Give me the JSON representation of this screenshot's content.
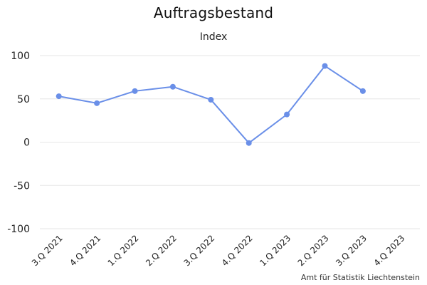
{
  "chart_data": {
    "type": "line",
    "title": "Auftragsbestand",
    "subtitle": "Index",
    "categories": [
      "3.Q 2021",
      "4.Q 2021",
      "1.Q 2022",
      "2.Q 2022",
      "3.Q 2022",
      "4.Q 2022",
      "1.Q 2023",
      "2.Q 2023",
      "3.Q 2023",
      "4.Q 2023"
    ],
    "series": [
      {
        "values": [
          53,
          45,
          59,
          64,
          49,
          -1,
          32,
          88,
          59,
          null
        ]
      }
    ],
    "yticks": [
      100,
      50,
      0,
      -50,
      -100
    ],
    "ylim": [
      -100,
      100
    ],
    "grid": true,
    "colors": {
      "line": "#6a8fe8",
      "grid": "#e6e6e6"
    }
  },
  "footer": "Amt für Statistik Liechtenstein"
}
